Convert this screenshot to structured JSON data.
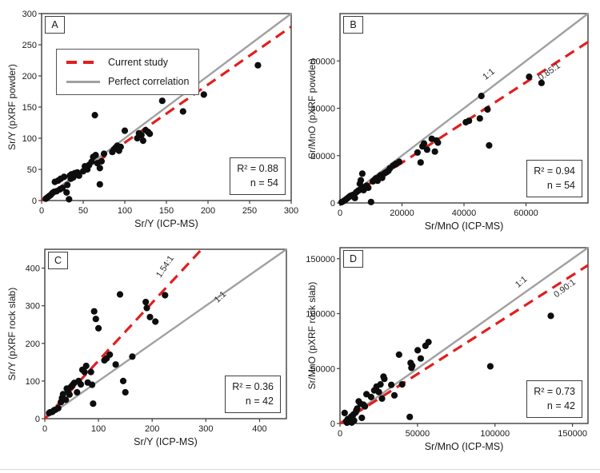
{
  "colors": {
    "red": "#e01f1f",
    "gray": "#a0a0a0",
    "point": "#0d0d0d",
    "frame": "#3f3f3f"
  },
  "chart_data": {
    "type": "scatter",
    "panels": [
      {
        "label": "A",
        "xlabel": "Sr/Y (ICP-MS)",
        "ylabel": "Sr/Y (pXRF powder)",
        "xlim": [
          0,
          300
        ],
        "ylim": [
          0,
          300
        ],
        "xticks": [
          0,
          50,
          100,
          150,
          200,
          250,
          300
        ],
        "yticks": [
          0,
          50,
          100,
          150,
          200,
          250,
          300
        ],
        "lines": [
          {
            "name": "perfect-correlation",
            "slope": 1,
            "style": "solid"
          },
          {
            "name": "current-study-fit",
            "slope": 0.93,
            "style": "dashed"
          }
        ],
        "legend": {
          "items": [
            {
              "label": "Current study",
              "style": "dashed-red"
            },
            {
              "label": "Perfect correlation",
              "style": "solid-gray"
            }
          ]
        },
        "annotations": [],
        "stats": {
          "r2": "R² = 0.88",
          "n": "n = 54"
        },
        "points": [
          [
            5,
            3
          ],
          [
            7,
            5
          ],
          [
            9,
            7
          ],
          [
            11,
            9
          ],
          [
            13,
            12
          ],
          [
            15,
            14
          ],
          [
            16,
            30
          ],
          [
            18,
            15
          ],
          [
            20,
            32
          ],
          [
            22,
            18
          ],
          [
            23,
            35
          ],
          [
            25,
            20
          ],
          [
            27,
            38
          ],
          [
            30,
            13
          ],
          [
            31,
            25
          ],
          [
            33,
            2
          ],
          [
            34,
            40
          ],
          [
            35,
            35
          ],
          [
            36,
            42
          ],
          [
            38,
            37
          ],
          [
            40,
            44
          ],
          [
            43,
            45
          ],
          [
            45,
            40
          ],
          [
            50,
            47
          ],
          [
            52,
            55
          ],
          [
            55,
            50
          ],
          [
            57,
            57
          ],
          [
            60,
            62
          ],
          [
            62,
            70
          ],
          [
            64,
            137
          ],
          [
            65,
            73
          ],
          [
            67,
            60
          ],
          [
            70,
            52
          ],
          [
            70,
            26
          ],
          [
            72,
            63
          ],
          [
            75,
            75
          ],
          [
            85,
            78
          ],
          [
            87,
            82
          ],
          [
            89,
            85
          ],
          [
            91,
            88
          ],
          [
            93,
            80
          ],
          [
            95,
            86
          ],
          [
            100,
            112
          ],
          [
            115,
            100
          ],
          [
            117,
            108
          ],
          [
            120,
            105
          ],
          [
            122,
            96
          ],
          [
            125,
            113
          ],
          [
            128,
            110
          ],
          [
            130,
            107
          ],
          [
            145,
            160
          ],
          [
            170,
            143
          ],
          [
            195,
            170
          ],
          [
            260,
            217
          ]
        ]
      },
      {
        "label": "B",
        "xlabel": "Sr/MnO (ICP-MS)",
        "ylabel": "Sr/MnO (pXRF powder)",
        "xlim": [
          0,
          80000
        ],
        "ylim": [
          0,
          80000
        ],
        "xticks": [
          0,
          20000,
          40000,
          60000
        ],
        "yticks": [
          0,
          20000,
          40000,
          60000
        ],
        "lines": [
          {
            "name": "perfect-correlation",
            "slope": 1,
            "style": "solid"
          },
          {
            "name": "current-study-fit",
            "slope": 0.85,
            "style": "dashed"
          }
        ],
        "annotations": [
          {
            "text": "1:1",
            "x": 48500,
            "y": 53500,
            "rot": -38
          },
          {
            "text": "0.85:1",
            "x": 68000,
            "y": 54500,
            "rot": -35
          }
        ],
        "stats": {
          "r2": "R² = 0.94",
          "n": "n = 54"
        },
        "points": [
          [
            500,
            300
          ],
          [
            1200,
            800
          ],
          [
            1800,
            1400
          ],
          [
            2400,
            2000
          ],
          [
            3000,
            2600
          ],
          [
            3300,
            2900
          ],
          [
            3600,
            3100
          ],
          [
            4200,
            3400
          ],
          [
            4800,
            2100
          ],
          [
            5200,
            4500
          ],
          [
            5800,
            5100
          ],
          [
            6200,
            5400
          ],
          [
            6400,
            8100
          ],
          [
            6700,
            9600
          ],
          [
            7000,
            6100
          ],
          [
            7200,
            12400
          ],
          [
            7600,
            5400
          ],
          [
            8100,
            6800
          ],
          [
            8600,
            7300
          ],
          [
            9100,
            6400
          ],
          [
            10000,
            400
          ],
          [
            10600,
            9100
          ],
          [
            11100,
            9700
          ],
          [
            11600,
            10400
          ],
          [
            12100,
            9400
          ],
          [
            12600,
            11000
          ],
          [
            13100,
            11700
          ],
          [
            13600,
            10600
          ],
          [
            14100,
            12300
          ],
          [
            14600,
            12700
          ],
          [
            15100,
            13100
          ],
          [
            15600,
            13600
          ],
          [
            16100,
            14600
          ],
          [
            17100,
            15700
          ],
          [
            17600,
            16100
          ],
          [
            18100,
            16600
          ],
          [
            19100,
            17400
          ],
          [
            25000,
            21300
          ],
          [
            26000,
            17100
          ],
          [
            26600,
            23900
          ],
          [
            27100,
            25100
          ],
          [
            28100,
            22500
          ],
          [
            29600,
            27100
          ],
          [
            30600,
            21700
          ],
          [
            31100,
            26400
          ],
          [
            31600,
            25500
          ],
          [
            40600,
            34100
          ],
          [
            41600,
            34700
          ],
          [
            45100,
            35700
          ],
          [
            45600,
            45200
          ],
          [
            47600,
            39500
          ],
          [
            48100,
            24300
          ],
          [
            61000,
            53300
          ],
          [
            65000,
            50700
          ]
        ]
      },
      {
        "label": "C",
        "xlabel": "Sr/Y (ICP-MS)",
        "ylabel": "Sr/Y (pXRF rock slab)",
        "xlim": [
          0,
          450
        ],
        "ylim": [
          0,
          450
        ],
        "xticks": [
          0,
          100,
          200,
          300,
          400
        ],
        "yticks": [
          0,
          100,
          200,
          300,
          400
        ],
        "lines": [
          {
            "name": "perfect-correlation",
            "slope": 1,
            "style": "solid"
          },
          {
            "name": "current-study-fit",
            "slope": 1.54,
            "style": "dashed"
          }
        ],
        "annotations": [
          {
            "text": "1.54:1",
            "x": 228,
            "y": 400,
            "rot": -56
          },
          {
            "text": "1:1",
            "x": 330,
            "y": 318,
            "rot": -43
          }
        ],
        "stats": {
          "r2": "R² = 0.36",
          "n": "n = 42"
        },
        "points": [
          [
            8,
            15
          ],
          [
            10,
            17
          ],
          [
            14,
            18
          ],
          [
            17,
            22
          ],
          [
            20,
            24
          ],
          [
            25,
            28
          ],
          [
            30,
            44
          ],
          [
            32,
            55
          ],
          [
            34,
            65
          ],
          [
            39,
            50
          ],
          [
            41,
            80
          ],
          [
            43,
            74
          ],
          [
            46,
            64
          ],
          [
            49,
            85
          ],
          [
            52,
            90
          ],
          [
            55,
            95
          ],
          [
            60,
            70
          ],
          [
            63,
            100
          ],
          [
            67,
            91
          ],
          [
            70,
            130
          ],
          [
            74,
            124
          ],
          [
            77,
            140
          ],
          [
            80,
            96
          ],
          [
            86,
            124
          ],
          [
            88,
            90
          ],
          [
            90,
            40
          ],
          [
            92,
            285
          ],
          [
            95,
            265
          ],
          [
            100,
            240
          ],
          [
            111,
            155
          ],
          [
            115,
            160
          ],
          [
            121,
            170
          ],
          [
            132,
            144
          ],
          [
            140,
            330
          ],
          [
            146,
            100
          ],
          [
            150,
            70
          ],
          [
            163,
            165
          ],
          [
            188,
            310
          ],
          [
            190,
            294
          ],
          [
            196,
            270
          ],
          [
            206,
            258
          ],
          [
            224,
            328
          ]
        ]
      },
      {
        "label": "D",
        "xlabel": "Sr/MnO (ICP-MS)",
        "ylabel": "Sr/MnO (pXRF rock slab)",
        "xlim": [
          0,
          160000
        ],
        "ylim": [
          0,
          160000
        ],
        "xticks": [
          0,
          50000,
          100000,
          150000
        ],
        "yticks": [
          0,
          50000,
          100000,
          150000
        ],
        "lines": [
          {
            "name": "perfect-correlation",
            "slope": 1,
            "style": "solid"
          },
          {
            "name": "current-study-fit",
            "slope": 0.9,
            "style": "dashed"
          }
        ],
        "annotations": [
          {
            "text": "1:1",
            "x": 118000,
            "y": 127000,
            "rot": -40
          },
          {
            "text": "0.90:1",
            "x": 146000,
            "y": 121000,
            "rot": -37
          }
        ],
        "stats": {
          "r2": "R² = 0.73",
          "n": "n = 42"
        },
        "points": [
          [
            3000,
            9500
          ],
          [
            4000,
            2000
          ],
          [
            4500,
            700
          ],
          [
            5000,
            4000
          ],
          [
            5600,
            1600
          ],
          [
            6100,
            3100
          ],
          [
            7100,
            6100
          ],
          [
            7600,
            800
          ],
          [
            8100,
            4100
          ],
          [
            8600,
            8100
          ],
          [
            9100,
            2600
          ],
          [
            10100,
            10100
          ],
          [
            10600,
            12100
          ],
          [
            11100,
            13600
          ],
          [
            12100,
            20100
          ],
          [
            13100,
            18100
          ],
          [
            14100,
            5100
          ],
          [
            15100,
            17100
          ],
          [
            16100,
            15600
          ],
          [
            17100,
            26600
          ],
          [
            20100,
            24100
          ],
          [
            22100,
            30100
          ],
          [
            23600,
            33600
          ],
          [
            25100,
            28600
          ],
          [
            26100,
            35600
          ],
          [
            27100,
            22600
          ],
          [
            28100,
            42600
          ],
          [
            28600,
            40600
          ],
          [
            33100,
            35100
          ],
          [
            35100,
            25600
          ],
          [
            38100,
            62600
          ],
          [
            40100,
            35600
          ],
          [
            45000,
            6000
          ],
          [
            45600,
            55100
          ],
          [
            46100,
            50600
          ],
          [
            46600,
            52600
          ],
          [
            50100,
            66600
          ],
          [
            52100,
            59100
          ],
          [
            55100,
            70600
          ],
          [
            57100,
            74100
          ],
          [
            97000,
            52000
          ],
          [
            136000,
            98000
          ]
        ]
      }
    ]
  }
}
